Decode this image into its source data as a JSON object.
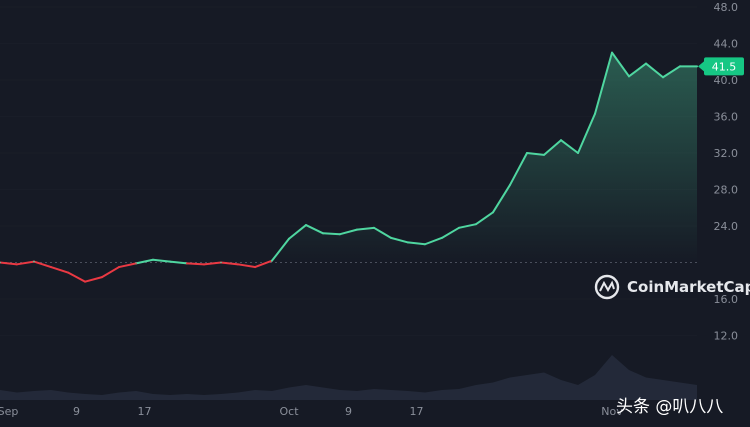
{
  "chart_data": {
    "type": "line",
    "title": "",
    "xlabel": "",
    "ylabel": "",
    "ylim": [
      8.0,
      48.0
    ],
    "y_ticks": [
      "48.0",
      "44.0",
      "40.0",
      "36.0",
      "32.0",
      "28.0",
      "24.0",
      "16.0",
      "12.0"
    ],
    "x_ticks": [
      "Sep",
      "9",
      "17",
      "Oct",
      "9",
      "17",
      "Nov"
    ],
    "baseline": 20.0,
    "current_price_label": "41.5",
    "current_price": 41.5,
    "colors": {
      "up": "#4fd6a0",
      "down": "#ea3943",
      "background": "#161a25",
      "badge": "#16c784",
      "grid": "#2a2e39"
    },
    "series": [
      {
        "x": [
          "Sep 1",
          "Sep 3",
          "Sep 5",
          "Sep 7",
          "Sep 8",
          "Sep 10",
          "Sep 12",
          "Sep 14",
          "Sep 16",
          "Sep 18",
          "Sep 20",
          "Sep 22",
          "Sep 24",
          "Sep 26",
          "Sep 28",
          "Sep 29",
          "Sep 30",
          "Oct 1",
          "Oct 2",
          "Oct 4",
          "Oct 6",
          "Oct 8",
          "Oct 10",
          "Oct 12",
          "Oct 14",
          "Oct 16",
          "Oct 18",
          "Oct 20",
          "Oct 22",
          "Oct 24",
          "Oct 26",
          "Oct 27",
          "Oct 28",
          "Oct 29",
          "Oct 30",
          "Oct 31",
          "Nov 1",
          "Nov 2",
          "Nov 3",
          "Nov 4",
          "Nov 5",
          "Nov 6"
        ],
        "values": [
          20.0,
          19.8,
          20.1,
          19.5,
          18.9,
          17.9,
          18.4,
          19.5,
          19.9,
          20.3,
          20.1,
          19.9,
          19.8,
          20.0,
          19.8,
          19.5,
          20.2,
          22.6,
          24.1,
          23.2,
          23.1,
          23.6,
          23.8,
          22.7,
          22.2,
          22.0,
          22.7,
          23.8,
          24.2,
          25.5,
          28.5,
          32.0,
          31.8,
          33.4,
          32.0,
          36.3,
          43.0,
          40.4,
          41.8,
          40.3,
          41.5,
          41.5
        ]
      }
    ],
    "volume": [
      0.2,
      0.15,
      0.18,
      0.2,
      0.15,
      0.12,
      0.1,
      0.15,
      0.18,
      0.12,
      0.1,
      0.12,
      0.1,
      0.12,
      0.15,
      0.2,
      0.18,
      0.25,
      0.3,
      0.25,
      0.2,
      0.18,
      0.22,
      0.2,
      0.18,
      0.15,
      0.2,
      0.22,
      0.3,
      0.35,
      0.45,
      0.5,
      0.55,
      0.4,
      0.3,
      0.5,
      0.9,
      0.6,
      0.45,
      0.4,
      0.35,
      0.3
    ]
  },
  "watermark": {
    "text": "CoinMarketCap"
  },
  "source_badge": {
    "text": "头条 @叭八八"
  }
}
